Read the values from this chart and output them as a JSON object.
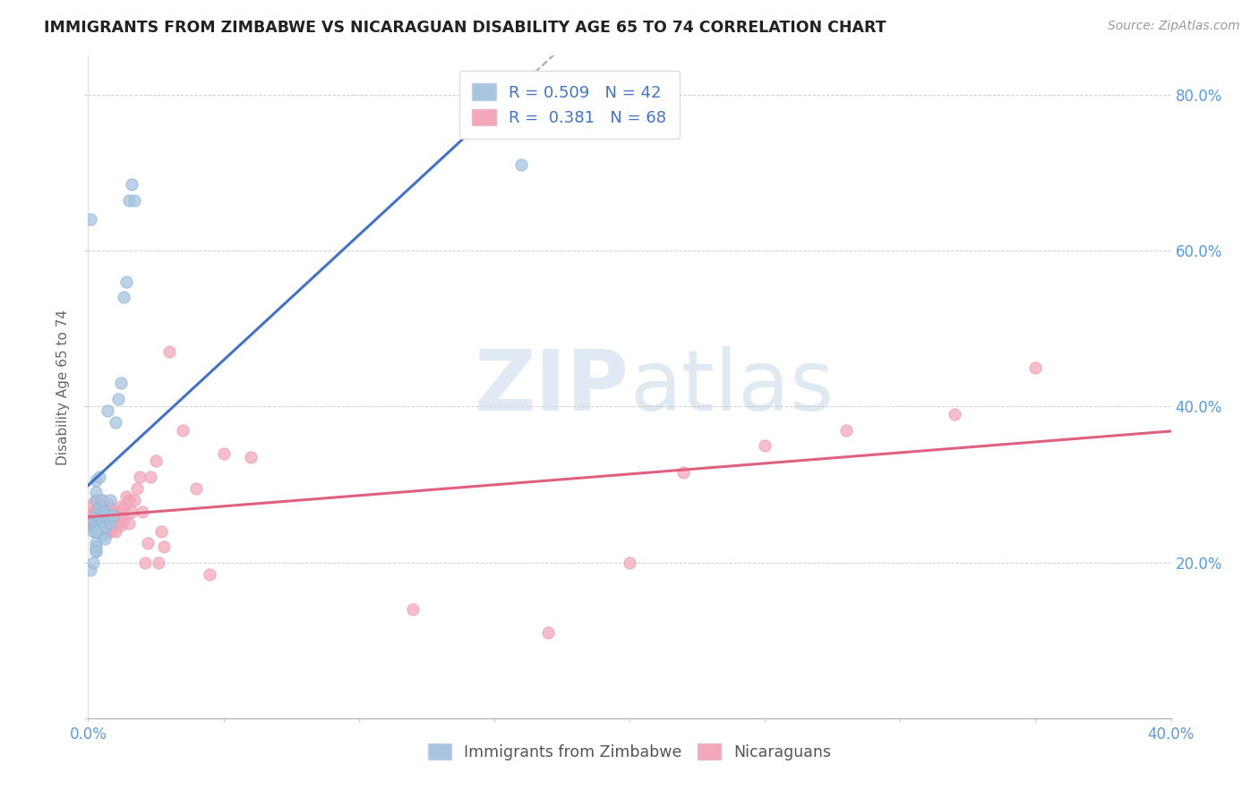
{
  "title": "IMMIGRANTS FROM ZIMBABWE VS NICARAGUAN DISABILITY AGE 65 TO 74 CORRELATION CHART",
  "source": "Source: ZipAtlas.com",
  "xlabel": "",
  "ylabel": "Disability Age 65 to 74",
  "xlim": [
    0.0,
    0.4
  ],
  "ylim": [
    0.0,
    0.85
  ],
  "x_ticks": [
    0.0,
    0.05,
    0.1,
    0.15,
    0.2,
    0.25,
    0.3,
    0.35,
    0.4
  ],
  "x_tick_labels": [
    "0.0%",
    "",
    "",
    "",
    "",
    "",
    "",
    "",
    "40.0%"
  ],
  "y_ticks": [
    0.0,
    0.2,
    0.4,
    0.6,
    0.8
  ],
  "y_tick_labels": [
    "",
    "20.0%",
    "40.0%",
    "60.0%",
    "80.0%"
  ],
  "zimbabwe_R": 0.509,
  "zimbabwe_N": 42,
  "nicaraguan_R": 0.381,
  "nicaraguan_N": 68,
  "zimbabwe_color": "#a8c4e0",
  "zimbabwe_line_color": "#4472c4",
  "nicaraguan_color": "#f4a7b9",
  "nicaraguan_line_color": "#e06080",
  "legend_label_zimbabwe": "Immigrants from Zimbabwe",
  "legend_label_nicaraguan": "Nicaraguans",
  "watermark_zip": "ZIP",
  "watermark_atlas": "atlas",
  "zimbabwe_x": [
    0.001,
    0.001,
    0.002,
    0.002,
    0.002,
    0.003,
    0.003,
    0.003,
    0.003,
    0.003,
    0.003,
    0.004,
    0.004,
    0.004,
    0.004,
    0.005,
    0.005,
    0.005,
    0.005,
    0.005,
    0.006,
    0.006,
    0.006,
    0.007,
    0.007,
    0.008,
    0.008,
    0.009,
    0.01,
    0.011,
    0.012,
    0.013,
    0.014,
    0.015,
    0.016,
    0.017,
    0.003,
    0.003,
    0.003,
    0.003,
    0.003,
    0.16
  ],
  "zimbabwe_y": [
    0.19,
    0.64,
    0.252,
    0.24,
    0.2,
    0.245,
    0.25,
    0.26,
    0.28,
    0.29,
    0.305,
    0.245,
    0.26,
    0.27,
    0.31,
    0.25,
    0.265,
    0.28,
    0.245,
    0.235,
    0.23,
    0.245,
    0.265,
    0.26,
    0.395,
    0.25,
    0.28,
    0.26,
    0.38,
    0.41,
    0.43,
    0.54,
    0.56,
    0.665,
    0.685,
    0.665,
    0.225,
    0.24,
    0.22,
    0.215,
    0.215,
    0.71
  ],
  "nicaraguan_x": [
    0.001,
    0.001,
    0.002,
    0.002,
    0.002,
    0.002,
    0.003,
    0.003,
    0.003,
    0.003,
    0.003,
    0.004,
    0.004,
    0.004,
    0.005,
    0.005,
    0.005,
    0.005,
    0.006,
    0.006,
    0.006,
    0.007,
    0.007,
    0.007,
    0.007,
    0.008,
    0.008,
    0.008,
    0.009,
    0.009,
    0.01,
    0.01,
    0.011,
    0.011,
    0.012,
    0.012,
    0.012,
    0.013,
    0.013,
    0.014,
    0.015,
    0.015,
    0.016,
    0.017,
    0.018,
    0.019,
    0.02,
    0.021,
    0.022,
    0.023,
    0.025,
    0.026,
    0.027,
    0.028,
    0.03,
    0.035,
    0.04,
    0.045,
    0.05,
    0.06,
    0.12,
    0.17,
    0.2,
    0.22,
    0.25,
    0.28,
    0.32,
    0.35
  ],
  "nicaraguan_y": [
    0.248,
    0.26,
    0.245,
    0.255,
    0.265,
    0.275,
    0.24,
    0.25,
    0.258,
    0.268,
    0.28,
    0.245,
    0.26,
    0.275,
    0.24,
    0.25,
    0.26,
    0.28,
    0.242,
    0.258,
    0.27,
    0.24,
    0.25,
    0.262,
    0.275,
    0.24,
    0.255,
    0.27,
    0.242,
    0.258,
    0.24,
    0.26,
    0.25,
    0.265,
    0.248,
    0.26,
    0.272,
    0.255,
    0.27,
    0.285,
    0.25,
    0.28,
    0.265,
    0.28,
    0.295,
    0.31,
    0.265,
    0.2,
    0.225,
    0.31,
    0.33,
    0.2,
    0.24,
    0.22,
    0.47,
    0.37,
    0.295,
    0.185,
    0.34,
    0.335,
    0.14,
    0.11,
    0.2,
    0.315,
    0.35,
    0.37,
    0.39,
    0.45
  ],
  "zim_line_x_end": 0.165,
  "nic_line_x_end": 0.4
}
